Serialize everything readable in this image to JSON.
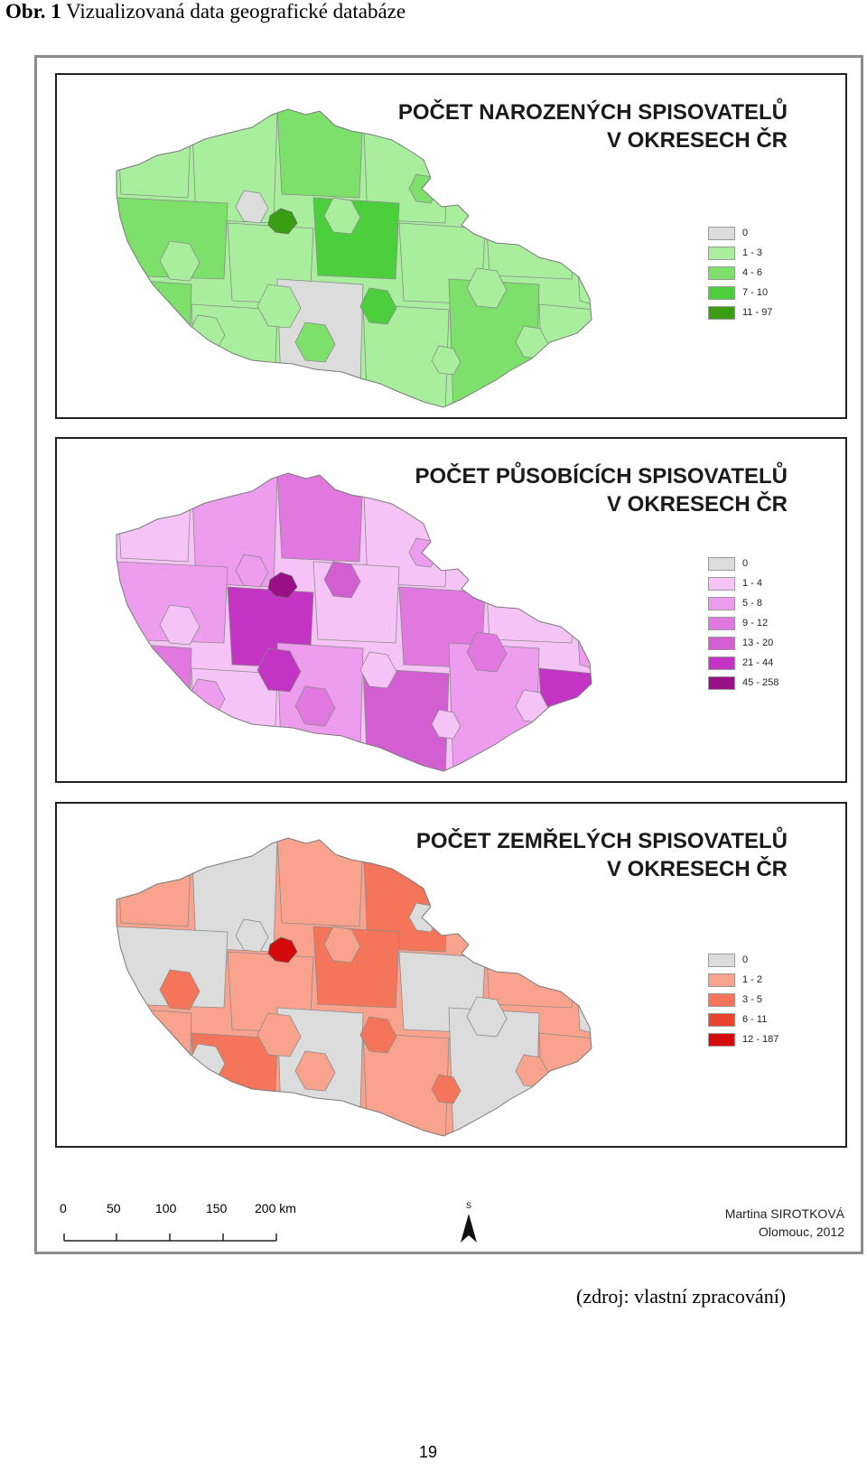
{
  "caption": {
    "label": "Obr. 1",
    "text": "Vizualizovaná data geografické databáze"
  },
  "maps": [
    {
      "title_line1": "POČET NAROZENÝCH SPISOVATELŮ",
      "title_line2": "V OKRESECH ČR",
      "legend": [
        {
          "label": "0",
          "color": "#dcdcdc"
        },
        {
          "label": "1 - 3",
          "color": "#a8ee9c"
        },
        {
          "label": "4 - 6",
          "color": "#7de06a"
        },
        {
          "label": "7 - 10",
          "color": "#4ccf3c"
        },
        {
          "label": "11 - 97",
          "color": "#3a9e12"
        }
      ],
      "fills": [
        "#a8ee9c",
        "#a8ee9c",
        "#7de06a",
        "#a8ee9c",
        "#dcdcdc",
        "#a8ee9c",
        "#7de06a",
        "#a8ee9c",
        "#4ccf3c",
        "#a8ee9c"
      ],
      "hotspot": "#3a9e12"
    },
    {
      "title_line1": "POČET PŮSOBÍCÍCH SPISOVATELŮ",
      "title_line2": "V OKRESECH ČR",
      "legend": [
        {
          "label": "0",
          "color": "#dcdcdc"
        },
        {
          "label": "1 - 4",
          "color": "#f6c3f6"
        },
        {
          "label": "5 - 8",
          "color": "#ee9cee"
        },
        {
          "label": "9 - 12",
          "color": "#e078e0"
        },
        {
          "label": "13 - 20",
          "color": "#d25ed2"
        },
        {
          "label": "21 - 44",
          "color": "#c434c4"
        },
        {
          "label": "45 - 258",
          "color": "#990f88"
        }
      ],
      "fills": [
        "#f6c3f6",
        "#ee9cee",
        "#e078e0",
        "#f6c3f6",
        "#ee9cee",
        "#d25ed2",
        "#ee9cee",
        "#c434c4",
        "#f6c3f6",
        "#e078e0"
      ],
      "hotspot": "#990f88"
    },
    {
      "title_line1": "POČET ZEMŘELÝCH SPISOVATELŮ",
      "title_line2": "V OKRESECH ČR",
      "legend": [
        {
          "label": "0",
          "color": "#dcdcdc"
        },
        {
          "label": "1 - 2",
          "color": "#f9a38e"
        },
        {
          "label": "3 - 5",
          "color": "#f5755a"
        },
        {
          "label": "6 - 11",
          "color": "#ea4430"
        },
        {
          "label": "12 - 187",
          "color": "#d40b0b"
        }
      ],
      "fills": [
        "#f9a38e",
        "#dcdcdc",
        "#f9a38e",
        "#f5755a",
        "#dcdcdc",
        "#f9a38e",
        "#dcdcdc",
        "#f9a38e",
        "#f5755a",
        "#dcdcdc"
      ],
      "hotspot": "#d40b0b"
    }
  ],
  "scale": {
    "labels": [
      "0",
      "50",
      "100",
      "150",
      "200 km"
    ]
  },
  "north_label": "S",
  "author": {
    "name": "Martina SIROTKOVÁ",
    "place_year": "Olomouc, 2012"
  },
  "source": "(zdroj: vlastní zpracování)",
  "page_number": "19"
}
